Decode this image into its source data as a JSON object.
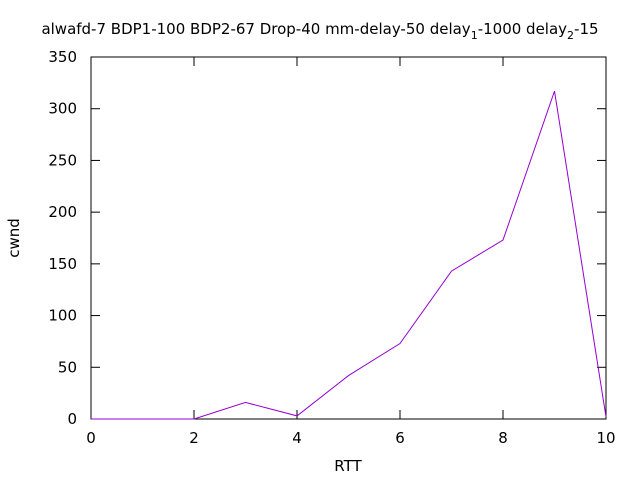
{
  "chart_data": {
    "type": "line",
    "title": {
      "main": "alwafd-7 BDP1-100 BDP2-67 Drop-40 mm-delay-50 delay",
      "sub1": "1",
      "mid": "-1000 delay",
      "sub2": "2",
      "tail": "-15"
    },
    "xlabel": "RTT",
    "ylabel": "cwnd",
    "xlim": [
      0,
      10
    ],
    "ylim": [
      0,
      350
    ],
    "xticks": [
      0,
      2,
      4,
      6,
      8,
      10
    ],
    "yticks": [
      0,
      50,
      100,
      150,
      200,
      250,
      300,
      350
    ],
    "grid": false,
    "legend": "none",
    "series": [
      {
        "color": "#9400d3",
        "x": [
          0,
          1,
          2,
          3,
          4,
          5,
          6,
          7,
          8,
          9,
          10
        ],
        "y": [
          0,
          0,
          0,
          16,
          3,
          42,
          73,
          143,
          173,
          317,
          2
        ]
      }
    ]
  }
}
